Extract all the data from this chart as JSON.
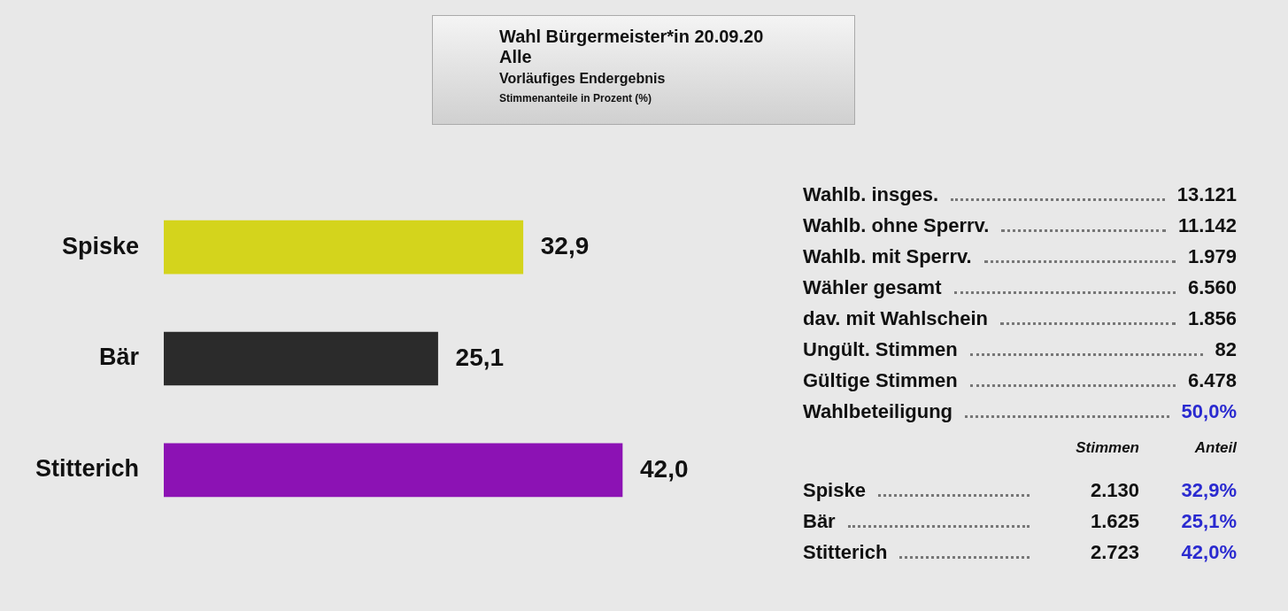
{
  "chart_data": {
    "type": "bar",
    "orientation": "horizontal",
    "title": "Wahl Bürgermeister*in 20.09.20",
    "subtitle": "Alle",
    "categories": [
      "Spiske",
      "Bär",
      "Stitterich"
    ],
    "values": [
      32.9,
      25.1,
      42.0
    ],
    "colors": [
      "#d4d41c",
      "#2b2b2b",
      "#8c12b4"
    ],
    "value_labels": [
      "32,9",
      "25,1",
      "42,0"
    ],
    "legend": false,
    "tick_labels": "y",
    "annotations": [
      "Vorläufiges Endergebnis",
      "Stimmenanteile in Prozent (%)",
      "Wahlb. insges.",
      "13.121",
      "Wahlb. ohne Sperrv.",
      "11.142",
      "Wahlb. mit Sperrv.",
      "1.979",
      "Wähler gesamt",
      "6.560",
      "dav. mit Wahlschein",
      "1.856",
      "Ungült. Stimmen",
      "82",
      "Gültige Stimmen",
      "6.478",
      "Wahlbeteiligung",
      "50,0%",
      "Stimmen",
      "Anteil",
      "Spiske",
      "2.130",
      "32,9%",
      "Bär",
      "1.625",
      "25,1%",
      "Stitterich",
      "2.723",
      "42,0%"
    ]
  }
}
